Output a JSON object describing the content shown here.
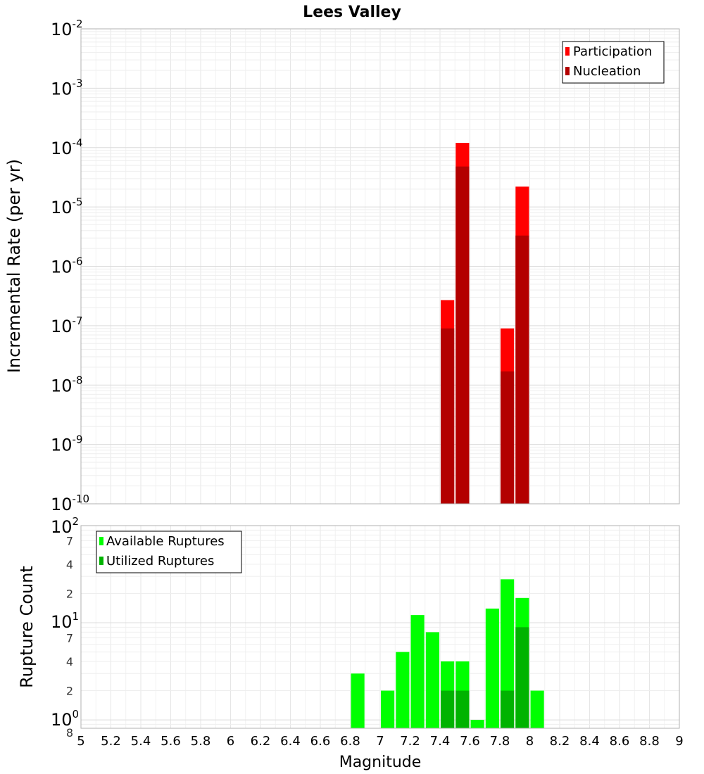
{
  "chart_data": [
    {
      "type": "bar",
      "title": "Lees Valley",
      "ylabel": "Incremental Rate (per yr)",
      "yscale": "log",
      "ylim": [
        1e-10,
        0.01
      ],
      "y_ticks": [
        {
          "base": "10",
          "exp": "-2"
        },
        {
          "base": "10",
          "exp": "-3"
        },
        {
          "base": "10",
          "exp": "-4"
        },
        {
          "base": "10",
          "exp": "-5"
        },
        {
          "base": "10",
          "exp": "-6"
        },
        {
          "base": "10",
          "exp": "-7"
        },
        {
          "base": "10",
          "exp": "-8"
        },
        {
          "base": "10",
          "exp": "-9"
        },
        {
          "base": "10",
          "exp": "-10"
        }
      ],
      "legend": {
        "position": "top-right"
      },
      "bar_width": 0.09,
      "series": [
        {
          "name": "Participation",
          "color": "#ff0000",
          "x": [
            7.45,
            7.55,
            7.85,
            7.95
          ],
          "values": [
            2.7e-07,
            0.00012,
            9e-08,
            2.2e-05
          ]
        },
        {
          "name": "Nucleation",
          "color": "#b30000",
          "x": [
            7.45,
            7.55,
            7.85,
            7.95
          ],
          "values": [
            9e-08,
            4.8e-05,
            1.7e-08,
            3.3e-06
          ]
        }
      ]
    },
    {
      "type": "bar",
      "ylabel": "Rupture Count",
      "xlabel": "Magnitude",
      "yscale": "log",
      "ylim": [
        0.82,
        100
      ],
      "xlim": [
        5,
        9
      ],
      "x_ticks": [
        "5",
        "5.2",
        "5.4",
        "5.6",
        "5.8",
        "6",
        "6.2",
        "6.4",
        "6.6",
        "6.8",
        "7",
        "7.2",
        "7.4",
        "7.6",
        "7.8",
        "8",
        "8.2",
        "8.4",
        "8.6",
        "8.8",
        "9"
      ],
      "y_major_ticks": [
        {
          "base": "10",
          "exp": "2"
        },
        {
          "base": "10",
          "exp": "1"
        },
        {
          "base": "10",
          "exp": "0"
        }
      ],
      "y_minor_labels": [
        "7",
        "4",
        "2",
        "7",
        "4",
        "2",
        "8"
      ],
      "legend": {
        "position": "top-left"
      },
      "bar_width": 0.09,
      "series": [
        {
          "name": "Available Ruptures",
          "color": "#00ff00",
          "x": [
            6.85,
            7.05,
            7.15,
            7.25,
            7.35,
            7.45,
            7.55,
            7.65,
            7.75,
            7.85,
            7.95,
            8.05
          ],
          "values": [
            3,
            2,
            5,
            12,
            8,
            4,
            4,
            1,
            14,
            28,
            18,
            2
          ]
        },
        {
          "name": "Utilized Ruptures",
          "color": "#00b300",
          "x": [
            7.45,
            7.55,
            7.85,
            7.95
          ],
          "values": [
            2,
            2,
            2,
            9
          ]
        }
      ]
    }
  ]
}
